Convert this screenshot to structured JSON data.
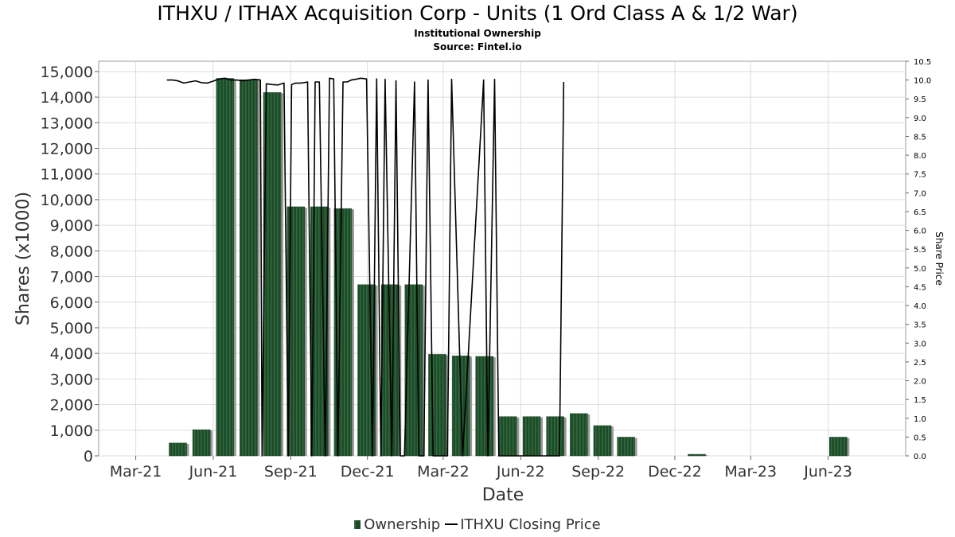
{
  "title": "ITHXU / ITHAX Acquisition Corp - Units (1 Ord Class A & 1/2 War)",
  "subtitle": "Institutional Ownership",
  "source": "Source: Fintel.io",
  "legend": {
    "ownership": "Ownership",
    "price": "ITHXU Closing Price"
  },
  "colors": {
    "bar": "#1f4a2a",
    "bar_shadow": "#9a9a9a",
    "line": "#000000",
    "grid": "#dddddd"
  },
  "chart_data": {
    "type": "bar",
    "xlabel": "Date",
    "ylabel": "Shares (x1000)",
    "y2label": "Share Price",
    "ylim": [
      0,
      15400
    ],
    "y2lim": [
      0,
      10.5
    ],
    "grid": true,
    "legend_position": "bottom-center",
    "x_ticks": [
      "Mar-21",
      "Jun-21",
      "Sep-21",
      "Dec-21",
      "Mar-22",
      "Jun-22",
      "Sep-22",
      "Dec-22",
      "Mar-23",
      "Jun-23"
    ],
    "y_ticks": [
      "0",
      "1,000",
      "2,000",
      "3,000",
      "4,000",
      "5,000",
      "6,000",
      "7,000",
      "8,000",
      "9,000",
      "10,000",
      "11,000",
      "12,000",
      "13,000",
      "14,000",
      "15,000"
    ],
    "y2_ticks": [
      "0.0",
      "0.5",
      "1.0",
      "1.5",
      "2.0",
      "2.5",
      "3.0",
      "3.5",
      "4.0",
      "4.5",
      "5.0",
      "5.5",
      "6.0",
      "6.5",
      "7.0",
      "7.5",
      "8.0",
      "8.5",
      "9.0",
      "9.5",
      "10.0",
      "10.5"
    ],
    "series": [
      {
        "name": "Ownership",
        "type": "bar",
        "x": [
          "2021-04-20",
          "2021-05-18",
          "2021-06-15",
          "2021-07-13",
          "2021-08-10",
          "2021-09-07",
          "2021-10-05",
          "2021-11-02",
          "2021-11-30",
          "2021-12-28",
          "2022-01-25",
          "2022-02-22",
          "2022-03-22",
          "2022-04-19",
          "2022-05-17",
          "2022-06-14",
          "2022-07-12",
          "2022-08-09",
          "2022-09-06",
          "2022-10-04",
          "2022-11-01",
          "2022-12-27",
          "2023-06-13"
        ],
        "values": [
          500,
          1020,
          14730,
          14680,
          14180,
          9720,
          9720,
          9650,
          6680,
          6680,
          6680,
          3960,
          3900,
          3880,
          1530,
          1530,
          1530,
          1650,
          1180,
          730,
          0,
          60,
          730
        ]
      },
      {
        "name": "ITHXU Closing Price",
        "type": "line",
        "x": [
          "2021-04-07",
          "2021-04-14",
          "2021-04-20",
          "2021-04-27",
          "2021-05-04",
          "2021-05-11",
          "2021-05-18",
          "2021-05-25",
          "2021-06-01",
          "2021-06-08",
          "2021-06-15",
          "2021-06-22",
          "2021-06-29",
          "2021-07-06",
          "2021-07-13",
          "2021-07-20",
          "2021-07-27",
          "2021-07-29",
          "2021-08-03",
          "2021-08-10",
          "2021-08-17",
          "2021-08-24",
          "2021-08-29",
          "2021-09-02",
          "2021-09-07",
          "2021-09-14",
          "2021-09-21",
          "2021-09-26",
          "2021-09-30",
          "2021-10-05",
          "2021-10-12",
          "2021-10-17",
          "2021-10-22",
          "2021-10-27",
          "2021-11-02",
          "2021-11-07",
          "2021-11-12",
          "2021-11-17",
          "2021-11-23",
          "2021-11-30",
          "2021-12-07",
          "2021-12-12",
          "2021-12-17",
          "2021-12-22",
          "2021-12-30",
          "2022-01-04",
          "2022-01-09",
          "2022-01-14",
          "2022-01-26",
          "2022-01-31",
          "2022-02-06",
          "2022-02-11",
          "2022-02-17",
          "2022-03-06",
          "2022-03-11",
          "2022-03-24",
          "2022-04-18",
          "2022-04-23",
          "2022-05-01",
          "2022-05-06",
          "2022-07-17",
          "2022-07-22"
        ],
        "values": [
          10.0,
          10.0,
          9.98,
          9.92,
          9.95,
          9.98,
          9.93,
          9.92,
          9.97,
          10.03,
          10.05,
          10.0,
          10.0,
          9.98,
          10.0,
          10.02,
          10.0,
          0.0,
          9.9,
          9.88,
          9.87,
          9.92,
          0.0,
          9.88,
          9.92,
          9.92,
          9.95,
          0.0,
          9.95,
          9.95,
          0.0,
          10.05,
          10.03,
          0.0,
          9.95,
          9.95,
          10.0,
          10.02,
          10.05,
          10.03,
          0.0,
          10.03,
          0.0,
          10.02,
          0.0,
          9.98,
          0.0,
          0.0,
          9.95,
          0.0,
          0.0,
          10.0,
          0.0,
          0.0,
          10.02,
          0.0,
          10.0,
          0.0,
          10.02,
          0.0,
          0.0,
          9.95
        ]
      }
    ]
  }
}
